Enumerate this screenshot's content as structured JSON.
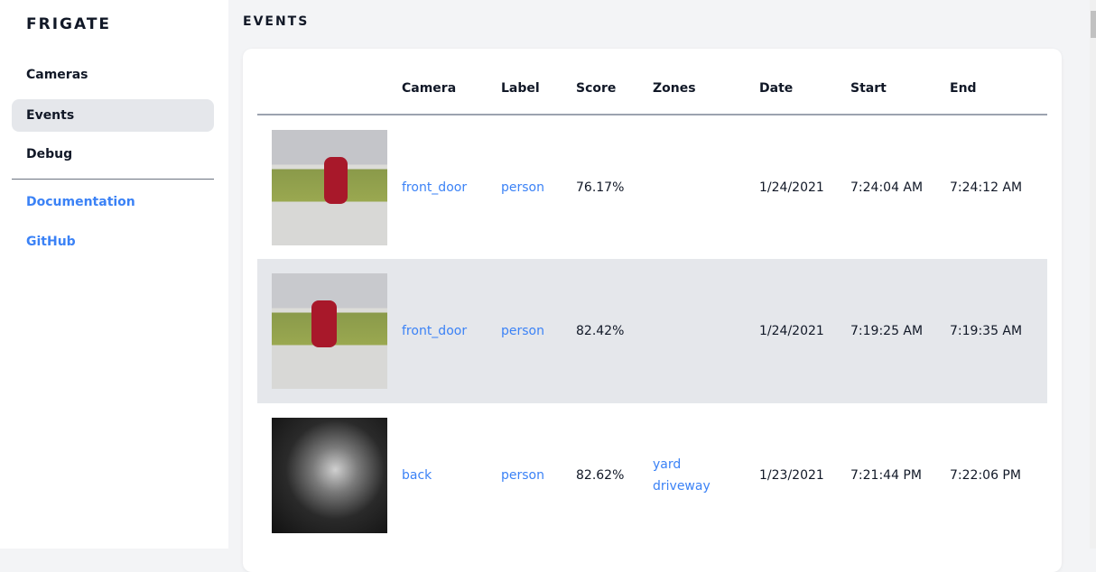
{
  "sidebar": {
    "brand": "FRIGATE",
    "items": [
      {
        "label": "Cameras"
      },
      {
        "label": "Events",
        "active": true
      },
      {
        "label": "Debug"
      }
    ],
    "links": [
      {
        "label": "Documentation"
      },
      {
        "label": "GitHub"
      }
    ]
  },
  "page": {
    "title": "EVENTS"
  },
  "table": {
    "columns": [
      "",
      "Camera",
      "Label",
      "Score",
      "Zones",
      "Date",
      "Start",
      "End"
    ],
    "rows": [
      {
        "camera": "front_door",
        "label": "person",
        "score": "76.17%",
        "zones": [],
        "date": "1/24/2021",
        "start": "7:24:04 AM",
        "end": "7:24:12 AM"
      },
      {
        "camera": "front_door",
        "label": "person",
        "score": "82.42%",
        "zones": [],
        "date": "1/24/2021",
        "start": "7:19:25 AM",
        "end": "7:19:35 AM"
      },
      {
        "camera": "back",
        "label": "person",
        "score": "82.62%",
        "zones": [
          "yard",
          "driveway"
        ],
        "date": "1/23/2021",
        "start": "7:21:44 PM",
        "end": "7:22:06 PM"
      }
    ]
  },
  "colors": {
    "accent": "#3b82f6",
    "active_bg": "#e5e7eb",
    "page_bg": "#f3f4f6"
  }
}
